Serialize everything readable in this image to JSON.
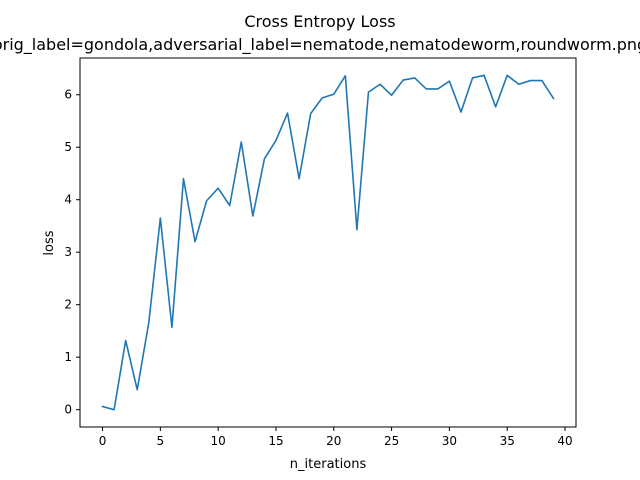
{
  "chart_data": {
    "type": "line",
    "title": "Cross Entropy Loss",
    "subtitle": "orig_label=gondola,adversarial_label=nematode,nematodeworm,roundworm.png",
    "xlabel": "n_iterations",
    "ylabel": "loss",
    "xlim": [
      -1.95,
      40.95
    ],
    "ylim": [
      -0.33,
      6.7
    ],
    "xticks": [
      0,
      5,
      10,
      15,
      20,
      25,
      30,
      35,
      40
    ],
    "yticks": [
      0,
      1,
      2,
      3,
      4,
      5,
      6
    ],
    "grid": false,
    "line_color": "#1f77b4",
    "series": [
      {
        "x": [
          0,
          1,
          2,
          3,
          4,
          5,
          6,
          7,
          8,
          9,
          10,
          11,
          12,
          13,
          14,
          15,
          16,
          17,
          18,
          19,
          20,
          21,
          22,
          23,
          24,
          25,
          26,
          27,
          28,
          29,
          30,
          31,
          32,
          33,
          34,
          35,
          36,
          37,
          38,
          39
        ],
        "values": [
          0.06,
          0.0,
          1.32,
          0.38,
          1.66,
          3.65,
          1.57,
          4.4,
          3.2,
          3.98,
          4.22,
          3.89,
          5.1,
          3.69,
          4.78,
          5.13,
          5.65,
          4.4,
          5.64,
          5.94,
          6.01,
          6.36,
          3.43,
          6.05,
          6.2,
          5.99,
          6.28,
          6.32,
          6.11,
          6.11,
          6.26,
          5.67,
          6.32,
          6.37,
          5.77,
          6.37,
          6.2,
          6.27,
          6.27,
          5.93
        ]
      }
    ]
  }
}
